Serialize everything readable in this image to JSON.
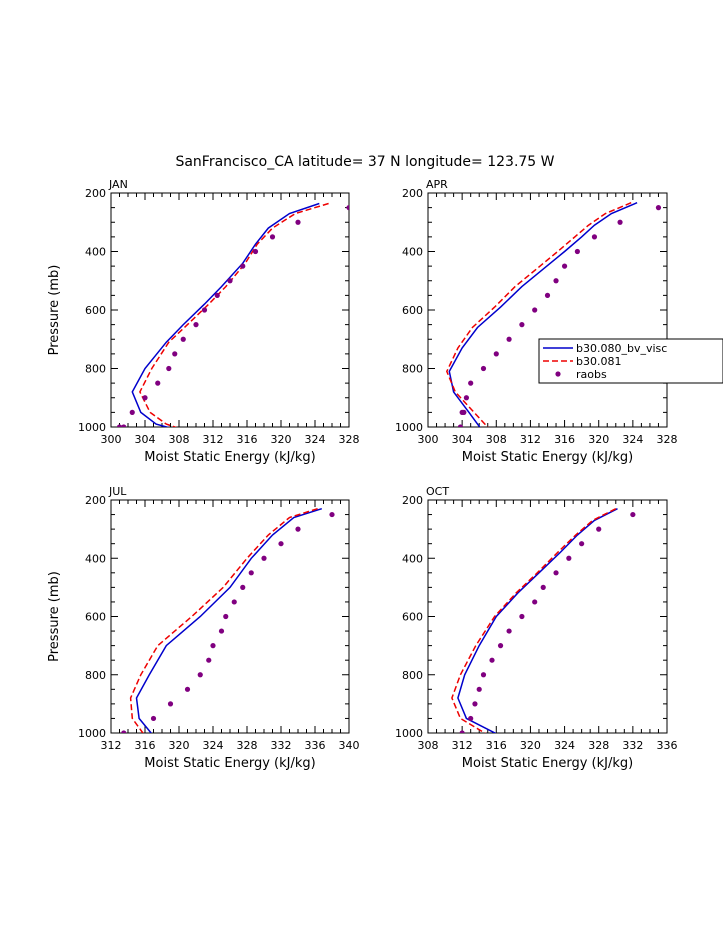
{
  "title": "SanFrancisco_CA  latitude= 37 N longitude= 123.75 W",
  "colors": {
    "model1": "#0000cc",
    "model2": "#ee0000",
    "obs": "#800080",
    "axis": "#000000"
  },
  "legend": {
    "location": "right of APR panel",
    "entries": [
      "b30.080_bv_visc",
      "b30.081",
      "raobs"
    ]
  },
  "chart_data": [
    {
      "type": "line",
      "panel": "JAN",
      "xlabel": "Moist Static Energy (kJ/kg)",
      "ylabel": "Pressure (mb)",
      "xlim": [
        300,
        328
      ],
      "xticks": [
        300,
        304,
        308,
        312,
        316,
        320,
        324,
        328
      ],
      "ylim": [
        1000,
        200
      ],
      "yticks": [
        200,
        400,
        600,
        800,
        1000
      ],
      "series": [
        {
          "name": "b30.080_bv_visc",
          "style": "solid",
          "x": [
            324.5,
            321,
            318.5,
            317,
            315.5,
            313,
            311,
            308.5,
            306.5,
            304,
            302.5,
            303.5,
            305.3,
            307.8
          ],
          "y": [
            236,
            270,
            320,
            375,
            440,
            520,
            580,
            650,
            710,
            800,
            880,
            950,
            990,
            1010
          ]
        },
        {
          "name": "b30.081",
          "style": "dashed",
          "x": [
            325.6,
            321.7,
            319,
            317.2,
            315.8,
            313.5,
            311.5,
            309,
            306.8,
            304.8,
            303.4,
            304.6,
            306.5,
            308.5
          ],
          "y": [
            236,
            270,
            320,
            375,
            440,
            520,
            580,
            650,
            710,
            800,
            880,
            950,
            990,
            1010
          ]
        },
        {
          "name": "raobs",
          "style": "markers",
          "x": [
            328,
            322,
            319,
            317,
            315.5,
            314,
            312.5,
            311,
            310,
            308.5,
            307.5,
            306.8,
            305.5,
            304,
            302.5,
            301.5,
            301
          ],
          "y": [
            250,
            300,
            350,
            400,
            450,
            500,
            550,
            600,
            650,
            700,
            750,
            800,
            850,
            900,
            950,
            1000,
            1000
          ]
        }
      ]
    },
    {
      "type": "line",
      "panel": "APR",
      "xlabel": "Moist Static Energy (kJ/kg)",
      "ylabel": "",
      "xlim": [
        300,
        328
      ],
      "xticks": [
        300,
        304,
        308,
        312,
        316,
        320,
        324,
        328
      ],
      "ylim": [
        1000,
        200
      ],
      "yticks": [
        200,
        400,
        600,
        800,
        1000
      ],
      "series": [
        {
          "name": "b30.080_bv_visc",
          "style": "solid",
          "x": [
            324.5,
            321.5,
            319.5,
            318,
            316,
            313.5,
            311,
            308.5,
            305.8,
            304,
            302.5,
            303,
            304.8,
            306.3
          ],
          "y": [
            233,
            270,
            310,
            350,
            400,
            460,
            520,
            590,
            660,
            730,
            810,
            880,
            950,
            1010
          ]
        },
        {
          "name": "b30.081",
          "style": "dashed",
          "x": [
            323.8,
            320.8,
            318.8,
            317.2,
            315.2,
            312.7,
            310.2,
            307.8,
            305.2,
            303.5,
            302.2,
            303.2,
            305.4,
            307.3
          ],
          "y": [
            233,
            270,
            310,
            350,
            400,
            460,
            520,
            590,
            660,
            730,
            810,
            880,
            950,
            1010
          ]
        },
        {
          "name": "raobs",
          "style": "markers",
          "x": [
            327,
            322.5,
            319.5,
            317.5,
            316,
            315,
            314,
            312.5,
            311,
            309.5,
            308,
            306.5,
            305,
            304.5,
            304.2,
            304,
            303.8
          ],
          "y": [
            250,
            300,
            350,
            400,
            450,
            500,
            550,
            600,
            650,
            700,
            750,
            800,
            850,
            900,
            950,
            950,
            1000
          ]
        }
      ]
    },
    {
      "type": "line",
      "panel": "JUL",
      "xlabel": "Moist Static Energy (kJ/kg)",
      "ylabel": "Pressure (mb)",
      "xlim": [
        312,
        340
      ],
      "xticks": [
        312,
        316,
        320,
        324,
        328,
        332,
        336,
        340
      ],
      "ylim": [
        1000,
        200
      ],
      "yticks": [
        200,
        400,
        600,
        800,
        1000
      ],
      "series": [
        {
          "name": "b30.080_bv_visc",
          "style": "solid",
          "x": [
            336.8,
            333.5,
            331,
            328.5,
            326,
            322.5,
            318.5,
            316.5,
            315,
            315.3,
            317
          ],
          "y": [
            230,
            260,
            320,
            400,
            500,
            600,
            700,
            800,
            880,
            950,
            1010
          ]
        },
        {
          "name": "b30.081",
          "style": "dashed",
          "x": [
            336.3,
            333,
            330.5,
            328,
            325.2,
            321.5,
            317.5,
            315.5,
            314.3,
            314.5,
            316
          ],
          "y": [
            230,
            260,
            320,
            400,
            500,
            600,
            700,
            800,
            880,
            950,
            1010
          ]
        },
        {
          "name": "raobs",
          "style": "markers",
          "x": [
            338,
            334,
            332,
            330,
            328.5,
            327.5,
            326.5,
            325.5,
            325,
            324,
            323.5,
            322.5,
            321,
            319,
            317,
            313.5
          ],
          "y": [
            250,
            300,
            350,
            400,
            450,
            500,
            550,
            600,
            650,
            700,
            750,
            800,
            850,
            900,
            950,
            1000
          ]
        }
      ]
    },
    {
      "type": "line",
      "panel": "OCT",
      "xlabel": "Moist Static Energy (kJ/kg)",
      "ylabel": "",
      "xlim": [
        308,
        336
      ],
      "xticks": [
        308,
        312,
        316,
        320,
        324,
        328,
        332,
        336
      ],
      "ylim": [
        1000,
        200
      ],
      "yticks": [
        200,
        400,
        600,
        800,
        1000
      ],
      "series": [
        {
          "name": "b30.080_bv_visc",
          "style": "solid",
          "x": [
            330.2,
            327.5,
            325.5,
            323.5,
            321,
            318.5,
            316,
            314,
            312.3,
            311.5,
            312.5,
            316.5
          ],
          "y": [
            230,
            270,
            320,
            380,
            450,
            520,
            600,
            700,
            800,
            880,
            950,
            1010
          ]
        },
        {
          "name": "b30.081",
          "style": "dashed",
          "x": [
            330,
            327.3,
            325.3,
            323.2,
            320.8,
            318.3,
            315.8,
            313.6,
            311.8,
            310.8,
            311.8,
            315.2
          ],
          "y": [
            230,
            270,
            320,
            380,
            450,
            520,
            600,
            700,
            800,
            880,
            950,
            1010
          ]
        },
        {
          "name": "raobs",
          "style": "markers",
          "x": [
            332,
            328,
            326,
            324.5,
            323,
            321.5,
            320.5,
            319,
            317.5,
            316.5,
            315.5,
            314.5,
            314,
            313.5,
            313,
            312
          ],
          "y": [
            250,
            300,
            350,
            400,
            450,
            500,
            550,
            600,
            650,
            700,
            750,
            800,
            850,
            900,
            950,
            1000
          ]
        }
      ]
    }
  ]
}
